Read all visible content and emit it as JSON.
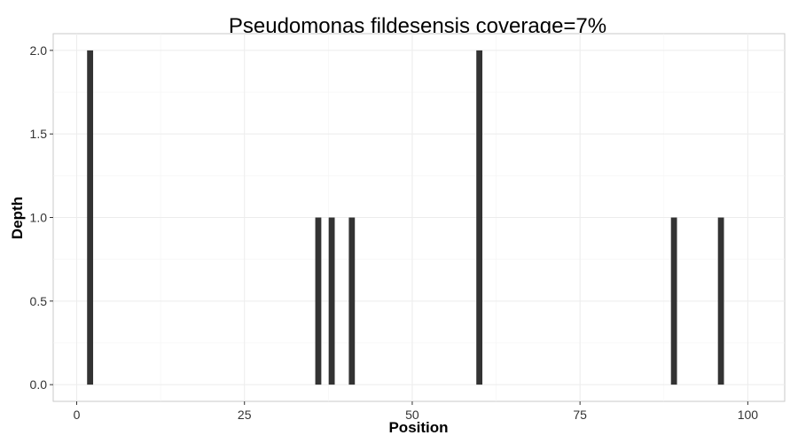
{
  "chart_data": {
    "type": "bar",
    "title": "Pseudomonas fildesensis coverage=7%",
    "xlabel": "Position",
    "ylabel": "Depth",
    "xlim": [
      -3.5,
      105.5
    ],
    "ylim": [
      -0.1,
      2.1
    ],
    "x_ticks": [
      0,
      25,
      50,
      75,
      100
    ],
    "x_tick_labels": [
      "0",
      "25",
      "50",
      "75",
      "100"
    ],
    "y_ticks": [
      0,
      0.5,
      1,
      1.5,
      2
    ],
    "y_tick_labels": [
      "0.0",
      "0.5",
      "1.0",
      "1.5",
      "2.0"
    ],
    "grid": true,
    "bar_color": "#333333",
    "points": [
      {
        "x": 2,
        "y": 2
      },
      {
        "x": 36,
        "y": 1
      },
      {
        "x": 38,
        "y": 1
      },
      {
        "x": 41,
        "y": 1
      },
      {
        "x": 60,
        "y": 2
      },
      {
        "x": 89,
        "y": 1
      },
      {
        "x": 96,
        "y": 1
      }
    ]
  }
}
